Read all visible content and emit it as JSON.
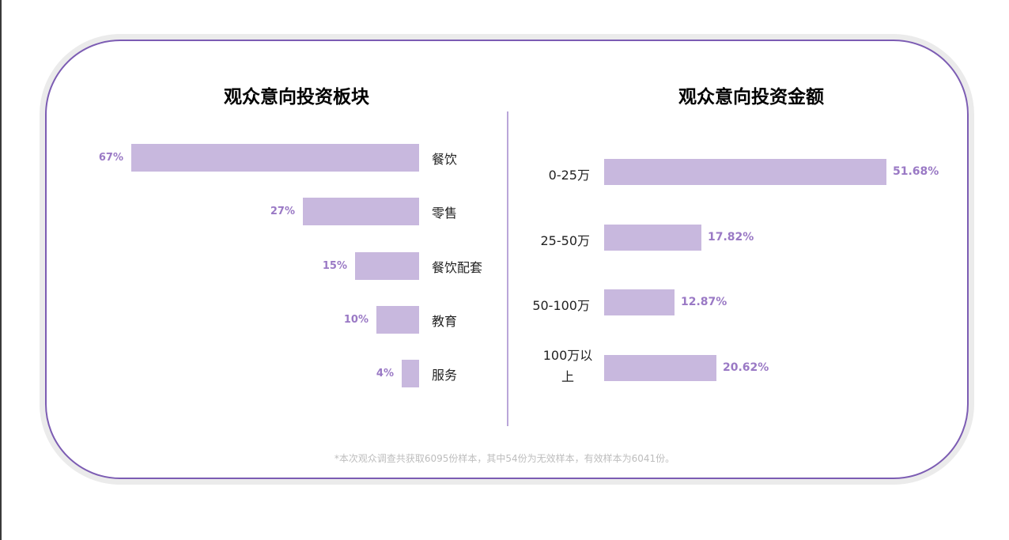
{
  "footnote": "*本次观众调查共获取6095份样本，其中54份为无效样本，有效样本为6041份。",
  "colors": {
    "bar": "#c8b8de",
    "value_label": "#9a79c5",
    "border": "#7c5cb3"
  },
  "chart_data": [
    {
      "type": "bar",
      "orientation": "horizontal",
      "direction": "right-to-left",
      "title": "观众意向投资板块",
      "categories": [
        "餐饮",
        "零售",
        "餐饮配套",
        "教育",
        "服务"
      ],
      "values": [
        67,
        27,
        15,
        10,
        4
      ],
      "value_labels": [
        "67%",
        "27%",
        "15%",
        "10%",
        "4%"
      ],
      "unit": "%",
      "xlim": [
        0,
        67
      ],
      "grid": false,
      "legend": "none"
    },
    {
      "type": "bar",
      "orientation": "horizontal",
      "direction": "left-to-right",
      "title": "观众意向投资金额",
      "categories": [
        "0-25万",
        "25-50万",
        "50-100万",
        "100万以上"
      ],
      "category_lines": [
        [
          "0-25万"
        ],
        [
          "25-50万"
        ],
        [
          "50-100万"
        ],
        [
          "100万以",
          "上"
        ]
      ],
      "values": [
        51.68,
        17.82,
        12.87,
        20.62
      ],
      "value_labels": [
        "51.68%",
        "17.82%",
        "12.87%",
        "20.62%"
      ],
      "unit": "%",
      "xlim": [
        0,
        51.68
      ],
      "grid": false,
      "legend": "none"
    }
  ]
}
